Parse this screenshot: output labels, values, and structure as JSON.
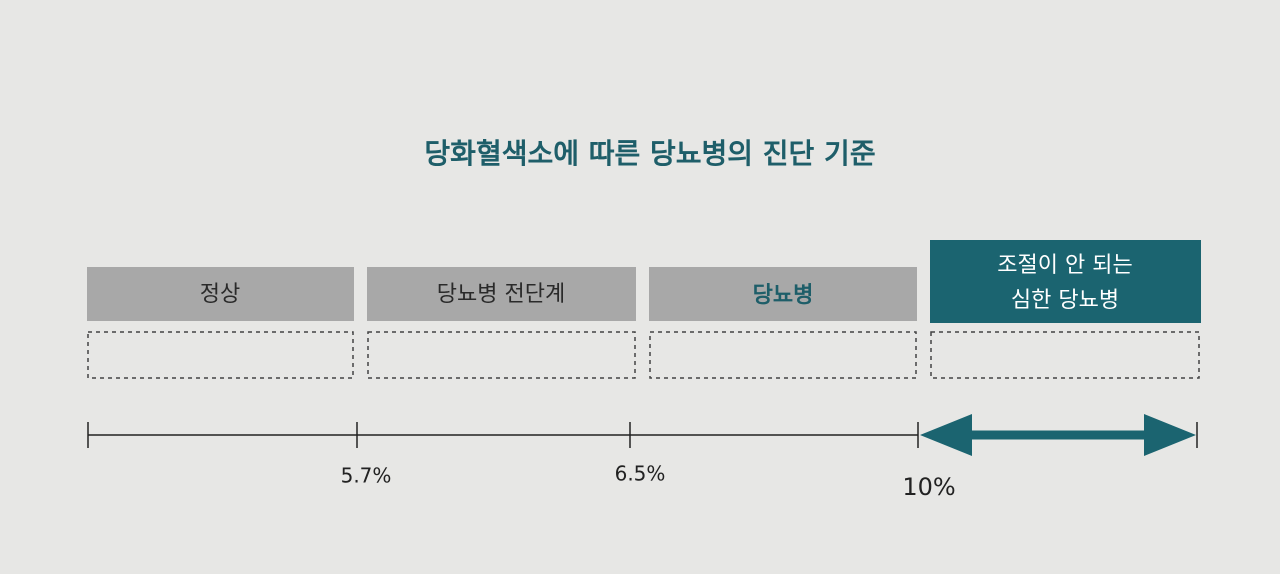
{
  "title": "당화혈색소에 따른 당뇨병의 진단 기준",
  "stages": [
    {
      "lines": [
        "정상"
      ]
    },
    {
      "lines": [
        "당뇨병 전단계"
      ]
    },
    {
      "lines": [
        "당뇨병"
      ]
    },
    {
      "lines": [
        "조절이 안 되는",
        "심한 당뇨병"
      ]
    }
  ],
  "thresholds": [
    "5.7%",
    "6.5%",
    "10%"
  ]
}
